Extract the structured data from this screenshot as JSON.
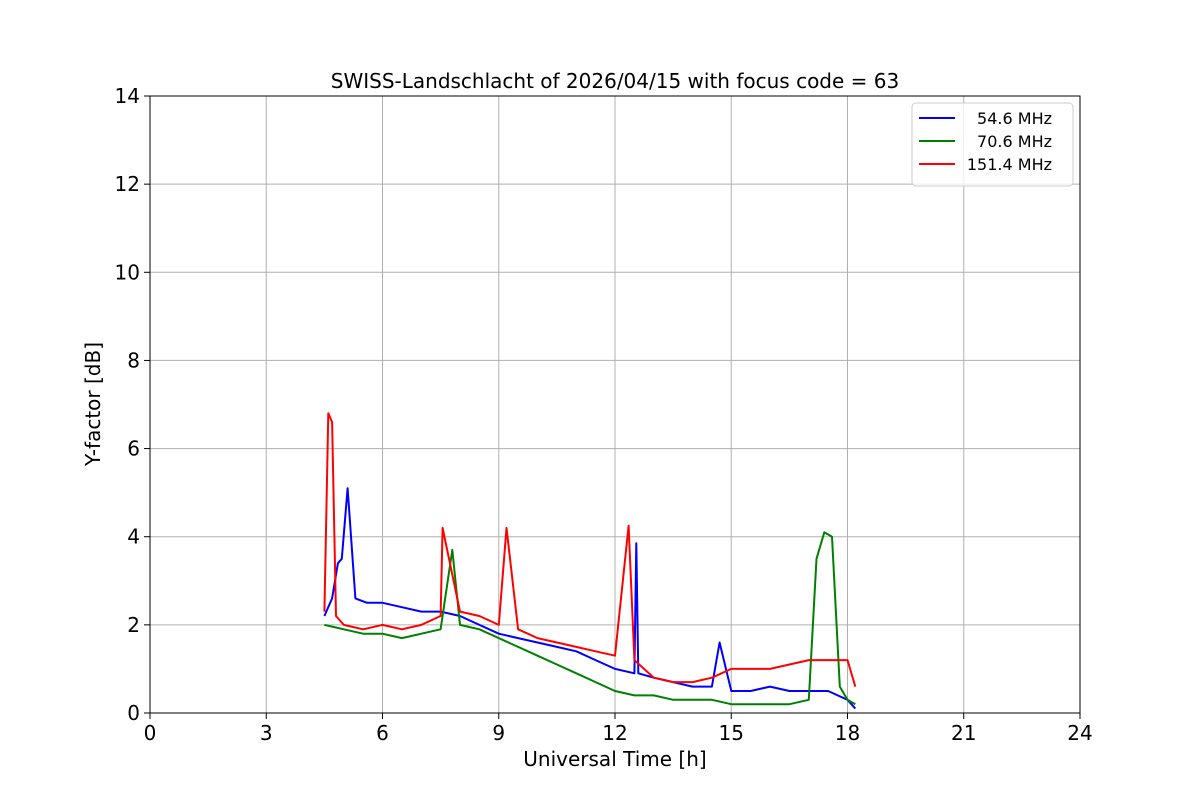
{
  "chart_data": {
    "type": "line",
    "title": "SWISS-Landschlacht of 2026/04/15 with focus code = 63",
    "xlabel": "Universal Time [h]",
    "ylabel": "Y-factor [dB]",
    "xlim": [
      0,
      24
    ],
    "ylim": [
      0,
      14
    ],
    "xticks": [
      0,
      3,
      6,
      9,
      12,
      15,
      18,
      21,
      24
    ],
    "yticks": [
      0,
      2,
      4,
      6,
      8,
      10,
      12,
      14
    ],
    "grid": true,
    "legend_position": "top-right",
    "series": [
      {
        "name": "54.6 MHz",
        "color": "#0000ff",
        "x": [
          4.5,
          4.7,
          4.85,
          4.95,
          5.1,
          5.3,
          5.6,
          6.0,
          6.5,
          7.0,
          7.5,
          8.0,
          8.5,
          9.0,
          9.5,
          10.0,
          10.5,
          11.0,
          11.5,
          12.0,
          12.5,
          12.55,
          12.6,
          13.0,
          13.5,
          14.0,
          14.5,
          14.7,
          15.0,
          15.5,
          16.0,
          16.5,
          17.0,
          17.5,
          18.0,
          18.2
        ],
        "y": [
          2.2,
          2.6,
          3.4,
          3.5,
          5.1,
          2.6,
          2.5,
          2.5,
          2.4,
          2.3,
          2.3,
          2.2,
          2.0,
          1.8,
          1.7,
          1.6,
          1.5,
          1.4,
          1.2,
          1.0,
          0.9,
          3.85,
          0.9,
          0.8,
          0.7,
          0.6,
          0.6,
          1.6,
          0.5,
          0.5,
          0.6,
          0.5,
          0.5,
          0.5,
          0.3,
          0.1
        ]
      },
      {
        "name": "70.6 MHz",
        "color": "#008000",
        "x": [
          4.5,
          5.0,
          5.5,
          6.0,
          6.5,
          7.0,
          7.5,
          7.8,
          8.0,
          8.5,
          9.0,
          9.5,
          10.0,
          10.5,
          11.0,
          11.5,
          12.0,
          12.5,
          13.0,
          13.5,
          14.0,
          14.5,
          15.0,
          15.5,
          16.0,
          16.5,
          17.0,
          17.2,
          17.4,
          17.6,
          17.8,
          18.0,
          18.2
        ],
        "y": [
          2.0,
          1.9,
          1.8,
          1.8,
          1.7,
          1.8,
          1.9,
          3.7,
          2.0,
          1.9,
          1.7,
          1.5,
          1.3,
          1.1,
          0.9,
          0.7,
          0.5,
          0.4,
          0.4,
          0.3,
          0.3,
          0.3,
          0.2,
          0.2,
          0.2,
          0.2,
          0.3,
          3.5,
          4.1,
          4.0,
          0.6,
          0.3,
          0.2
        ]
      },
      {
        "name": "151.4 MHz",
        "color": "#ff0000",
        "x": [
          4.5,
          4.6,
          4.7,
          4.8,
          5.0,
          5.5,
          6.0,
          6.5,
          7.0,
          7.5,
          7.55,
          8.0,
          8.5,
          9.0,
          9.2,
          9.5,
          10.0,
          10.5,
          11.0,
          11.5,
          12.0,
          12.35,
          12.5,
          13.0,
          13.5,
          14.0,
          14.5,
          15.0,
          15.5,
          16.0,
          16.5,
          17.0,
          17.5,
          18.0,
          18.2
        ],
        "y": [
          2.3,
          6.8,
          6.6,
          2.2,
          2.0,
          1.9,
          2.0,
          1.9,
          2.0,
          2.2,
          4.2,
          2.3,
          2.2,
          2.0,
          4.2,
          1.9,
          1.7,
          1.6,
          1.5,
          1.4,
          1.3,
          4.25,
          1.2,
          0.8,
          0.7,
          0.7,
          0.8,
          1.0,
          1.0,
          1.0,
          1.1,
          1.2,
          1.2,
          1.2,
          0.6
        ]
      }
    ]
  }
}
